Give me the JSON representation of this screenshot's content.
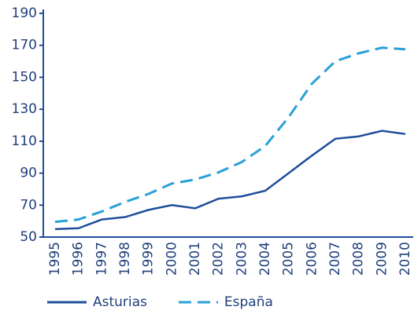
{
  "chart_data": {
    "type": "line",
    "categories": [
      "1995",
      "1996",
      "1997",
      "1998",
      "1999",
      "2000",
      "2001",
      "2002",
      "2003",
      "2004",
      "2005",
      "2006",
      "2007",
      "2008",
      "2009",
      "2010"
    ],
    "series": [
      {
        "name": "Asturias",
        "color": "#1f4e9b",
        "dash": false,
        "values": [
          55,
          55.5,
          61,
          62.5,
          67,
          70,
          68,
          74,
          75.5,
          79,
          90,
          101,
          111.5,
          113,
          116.5,
          114.5
        ]
      },
      {
        "name": "España",
        "color": "#2aa0d8",
        "dash": true,
        "values": [
          59.5,
          61,
          66,
          72,
          77,
          83.5,
          86,
          90.5,
          97,
          107,
          125,
          146,
          160,
          165,
          168.5,
          167.5
        ]
      }
    ],
    "ylim": [
      50,
      190
    ],
    "yticks": [
      50,
      70,
      90,
      110,
      130,
      150,
      170,
      190
    ],
    "grid": false,
    "legend": "bottom"
  }
}
